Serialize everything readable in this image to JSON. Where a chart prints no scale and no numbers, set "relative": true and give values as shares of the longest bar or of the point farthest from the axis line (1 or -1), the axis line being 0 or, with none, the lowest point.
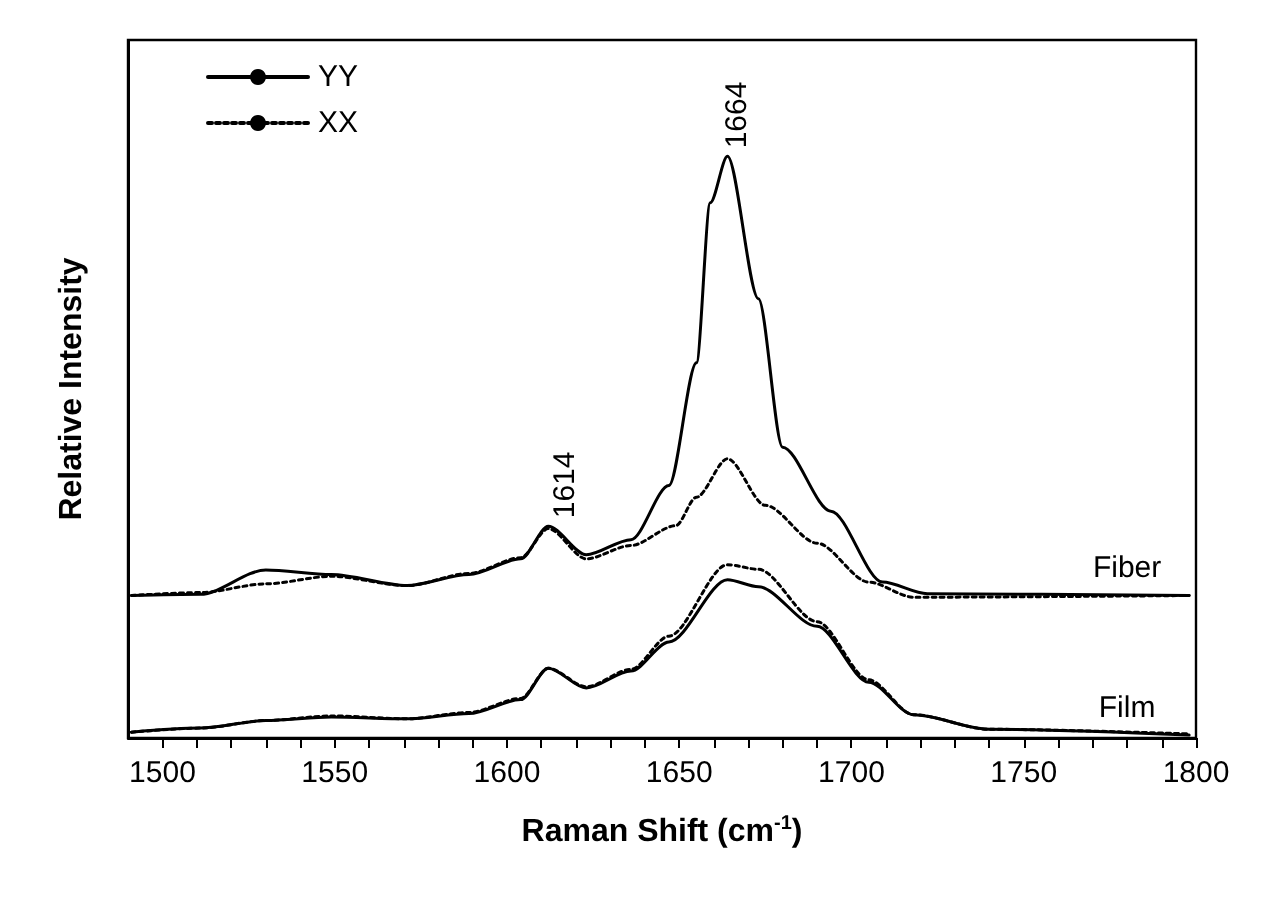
{
  "chart_data": {
    "type": "line",
    "relative": true,
    "xlabel": "Raman Shift (cm$^{-1}$)",
    "ylabel": "Relative Intensity",
    "xlim": [
      1490,
      1800
    ],
    "xticks": [
      1500,
      {
        "value": 1510,
        "label": null
      },
      {
        "value": 1520,
        "label": null
      },
      {
        "value": 1530,
        "label": null
      },
      {
        "value": 1540,
        "label": null
      },
      1550,
      {
        "value": 1560,
        "label": null
      },
      {
        "value": 1570,
        "label": null
      },
      {
        "value": 1580,
        "label": null
      },
      {
        "value": 1590,
        "label": null
      },
      1600,
      {
        "value": 1610,
        "label": null
      },
      {
        "value": 1620,
        "label": null
      },
      {
        "value": 1630,
        "label": null
      },
      {
        "value": 1640,
        "label": null
      },
      1650,
      {
        "value": 1660,
        "label": null
      },
      {
        "value": 1670,
        "label": null
      },
      {
        "value": 1680,
        "label": null
      },
      {
        "value": 1690,
        "label": null
      },
      1700,
      {
        "value": 1710,
        "label": null
      },
      {
        "value": 1720,
        "label": null
      },
      {
        "value": 1730,
        "label": null
      },
      {
        "value": 1740,
        "label": null
      },
      1750,
      {
        "value": 1760,
        "label": null
      },
      {
        "value": 1770,
        "label": null
      },
      {
        "value": 1780,
        "label": null
      },
      {
        "value": 1790,
        "label": null
      },
      1800
    ],
    "legend": "top left",
    "marker": "none",
    "grid": false,
    "series": [
      {
        "name": "YY",
        "color": "#000000",
        "line_style": "solid",
        "x": [
          1491,
          1511,
          1530,
          1549,
          1571,
          1589,
          1604,
          1612,
          1623,
          1636,
          1647,
          1655,
          1659,
          1664,
          1673,
          1680,
          1694,
          1709,
          1722,
          1798
        ],
        "values": [
          0.245,
          0.247,
          0.289,
          0.281,
          0.262,
          0.281,
          0.308,
          0.364,
          0.315,
          0.341,
          0.434,
          0.645,
          0.92,
          1.0,
          0.755,
          0.5,
          0.39,
          0.268,
          0.248,
          0.245
        ]
      },
      {
        "name": "XX",
        "color": "#000000",
        "line_style": "dotted",
        "x": [
          1491,
          1511,
          1530,
          1549,
          1571,
          1589,
          1604,
          1612,
          1623,
          1636,
          1649,
          1655,
          1664,
          1675,
          1690,
          1705,
          1718,
          1798
        ],
        "values": [
          0.245,
          0.25,
          0.265,
          0.278,
          0.262,
          0.283,
          0.31,
          0.36,
          0.308,
          0.331,
          0.365,
          0.414,
          0.48,
          0.4,
          0.335,
          0.268,
          0.242,
          0.245
        ]
      },
      {
        "color": "#000000",
        "line_style": "solid",
        "x": [
          1491,
          1511,
          1530,
          1549,
          1571,
          1589,
          1604,
          1612,
          1623,
          1636,
          1647,
          1664,
          1673,
          1690,
          1705,
          1718,
          1740,
          1798
        ],
        "values": [
          0.01,
          0.017,
          0.03,
          0.036,
          0.033,
          0.042,
          0.066,
          0.12,
          0.086,
          0.115,
          0.165,
          0.272,
          0.26,
          0.192,
          0.096,
          0.04,
          0.015,
          0.005
        ]
      },
      {
        "color": "#000000",
        "line_style": "dotted",
        "x": [
          1491,
          1511,
          1530,
          1549,
          1571,
          1589,
          1604,
          1612,
          1623,
          1636,
          1647,
          1664,
          1673,
          1690,
          1705,
          1718,
          1740,
          1798
        ],
        "values": [
          0.01,
          0.017,
          0.03,
          0.038,
          0.033,
          0.044,
          0.068,
          0.12,
          0.088,
          0.118,
          0.175,
          0.298,
          0.29,
          0.2,
          0.1,
          0.04,
          0.015,
          0.007
        ]
      }
    ],
    "annotations": [
      {
        "text": "1614",
        "x": 1614,
        "y": 0.364
      },
      {
        "text": "1664",
        "x": 1664,
        "y": 1.0
      },
      {
        "text": "Fiber",
        "x": 1780,
        "y": 0.245
      },
      {
        "text": "Film",
        "x": 1780,
        "y": 0.005
      }
    ]
  }
}
